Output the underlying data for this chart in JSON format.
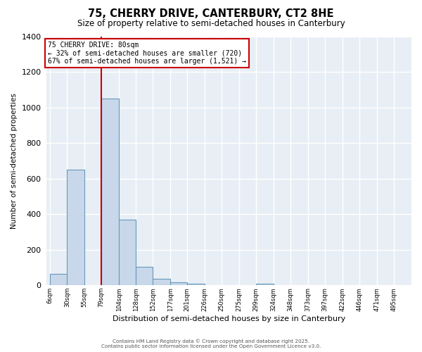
{
  "title_line1": "75, CHERRY DRIVE, CANTERBURY, CT2 8HE",
  "title_line2": "Size of property relative to semi-detached houses in Canterbury",
  "xlabel": "Distribution of semi-detached houses by size in Canterbury",
  "ylabel": "Number of semi-detached properties",
  "bin_labels": [
    "6sqm",
    "30sqm",
    "55sqm",
    "79sqm",
    "104sqm",
    "128sqm",
    "152sqm",
    "177sqm",
    "201sqm",
    "226sqm",
    "250sqm",
    "275sqm",
    "299sqm",
    "324sqm",
    "348sqm",
    "373sqm",
    "397sqm",
    "422sqm",
    "446sqm",
    "471sqm",
    "495sqm"
  ],
  "bin_edges": [
    6,
    30,
    55,
    79,
    104,
    128,
    152,
    177,
    201,
    226,
    250,
    275,
    299,
    324,
    348,
    373,
    397,
    422,
    446,
    471,
    495,
    520
  ],
  "bar_heights": [
    65,
    650,
    0,
    1050,
    370,
    105,
    35,
    15,
    10,
    0,
    0,
    0,
    10,
    0,
    0,
    0,
    0,
    0,
    0,
    0,
    0
  ],
  "bar_color": "#c8d8ea",
  "bar_edge_color": "#6699bb",
  "red_line_x": 79,
  "red_line_color": "#cc0000",
  "annotation_text": "75 CHERRY DRIVE: 80sqm\n← 32% of semi-detached houses are smaller (720)\n67% of semi-detached houses are larger (1,521) →",
  "annotation_box_color": "white",
  "annotation_box_edge_color": "#cc0000",
  "ylim": [
    0,
    1400
  ],
  "yticks": [
    0,
    200,
    400,
    600,
    800,
    1000,
    1200,
    1400
  ],
  "bg_color": "#e8eef5",
  "grid_color": "#d0dae5",
  "footer_line1": "Contains HM Land Registry data © Crown copyright and database right 2025.",
  "footer_line2": "Contains public sector information licensed under the Open Government Licence v3.0."
}
